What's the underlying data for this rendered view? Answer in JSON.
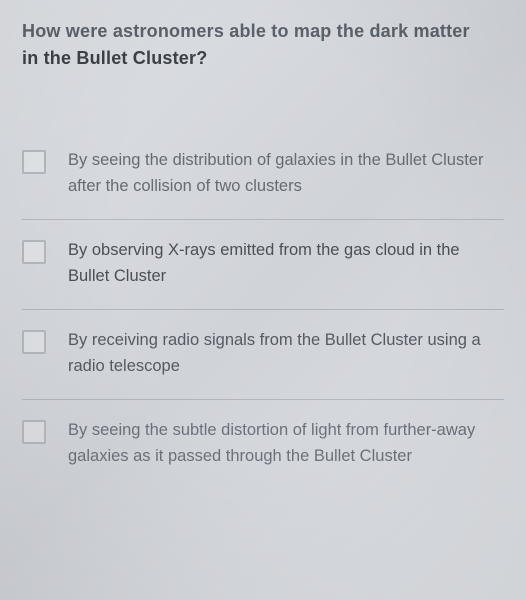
{
  "colors": {
    "text_primary": "#3e4248",
    "text_faded": "#6a6f77",
    "text_very_faded": "#919aa5",
    "divider": "rgba(140,145,152,0.45)",
    "checkbox_border": "#b4b8bf"
  },
  "question": {
    "line1": "How were astronomers able to map the dark matter",
    "line2": "in the Bullet Cluster?",
    "line1_color": "#5a616a",
    "line2_color": "#3c4047"
  },
  "options": [
    {
      "text": "By seeing the distribution of galaxies in the Bullet Cluster after the collision of two clusters",
      "text_color": "#666c75"
    },
    {
      "text": "By observing X-rays emitted from the gas cloud in the Bullet Cluster",
      "text_color": "#4b5057"
    },
    {
      "text": "By receiving radio signals from the Bullet Cluster using a radio telescope",
      "text_color": "#555b63"
    },
    {
      "text": "By seeing the subtle distortion of light from further-away galaxies as it passed through the Bullet Cluster",
      "text_color": "#6b727c"
    }
  ]
}
